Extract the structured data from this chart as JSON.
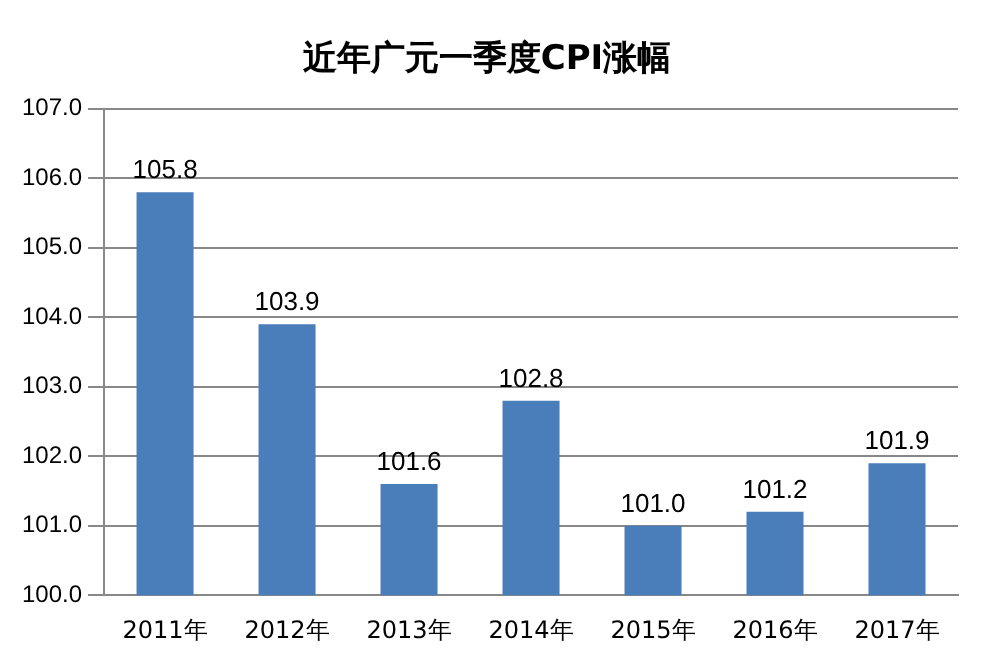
{
  "chart_data": {
    "type": "bar",
    "title": "近年广元一季度CPI涨幅",
    "categories": [
      "2011年",
      "2012年",
      "2013年",
      "2014年",
      "2015年",
      "2016年",
      "2017年"
    ],
    "values": [
      105.8,
      103.9,
      101.6,
      102.8,
      101.0,
      101.2,
      101.9
    ],
    "value_labels": [
      "105.8",
      "103.9",
      "101.6",
      "102.8",
      "101.0",
      "101.2",
      "101.9"
    ],
    "color": "#4a7ebb",
    "ylim": [
      100,
      107
    ],
    "yticks": [
      {
        "value": 100,
        "label": "100.0"
      },
      {
        "value": 101,
        "label": "101.0"
      },
      {
        "value": 102,
        "label": "102.0"
      },
      {
        "value": 103,
        "label": "103.0"
      },
      {
        "value": 104,
        "label": "104.0"
      },
      {
        "value": 105,
        "label": "105.0"
      },
      {
        "value": 106,
        "label": "106.0"
      },
      {
        "value": 107,
        "label": "107.0"
      }
    ],
    "grid": "y"
  }
}
